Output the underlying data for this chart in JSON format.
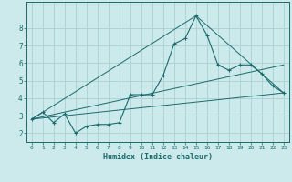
{
  "xlabel": "Humidex (Indice chaleur)",
  "background_color": "#cce9ec",
  "grid_color": "#aacfd4",
  "line_color": "#1a6b6b",
  "xlim": [
    -0.5,
    23.5
  ],
  "ylim": [
    1.5,
    9.5
  ],
  "yticks": [
    2,
    3,
    4,
    5,
    6,
    7,
    8
  ],
  "xticks": [
    0,
    1,
    2,
    3,
    4,
    5,
    6,
    7,
    8,
    9,
    10,
    11,
    12,
    13,
    14,
    15,
    16,
    17,
    18,
    19,
    20,
    21,
    22,
    23
  ],
  "series1_x": [
    0,
    1,
    2,
    3,
    4,
    5,
    6,
    7,
    8,
    9,
    10,
    11,
    12,
    13,
    14,
    15,
    16,
    17,
    18,
    19,
    20,
    21,
    22,
    23
  ],
  "series1_y": [
    2.8,
    3.2,
    2.6,
    3.1,
    2.0,
    2.4,
    2.5,
    2.5,
    2.6,
    4.2,
    4.2,
    4.2,
    5.3,
    7.1,
    7.4,
    8.7,
    7.6,
    5.9,
    5.6,
    5.9,
    5.9,
    5.4,
    4.7,
    4.3
  ],
  "series2_x": [
    0,
    23
  ],
  "series2_y": [
    2.8,
    4.3
  ],
  "series3_x": [
    0,
    15,
    23
  ],
  "series3_y": [
    2.8,
    8.7,
    4.3
  ],
  "series4_x": [
    0,
    23
  ],
  "series4_y": [
    2.8,
    5.9
  ]
}
